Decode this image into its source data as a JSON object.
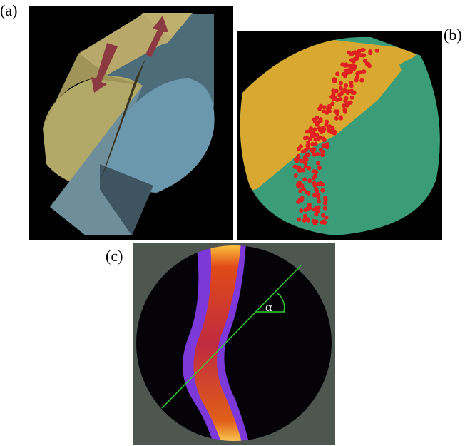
{
  "panels": [
    {
      "label": "(a)"
    },
    {
      "label": "(b)"
    },
    {
      "label": "(c)",
      "angle_label": "α"
    }
  ]
}
